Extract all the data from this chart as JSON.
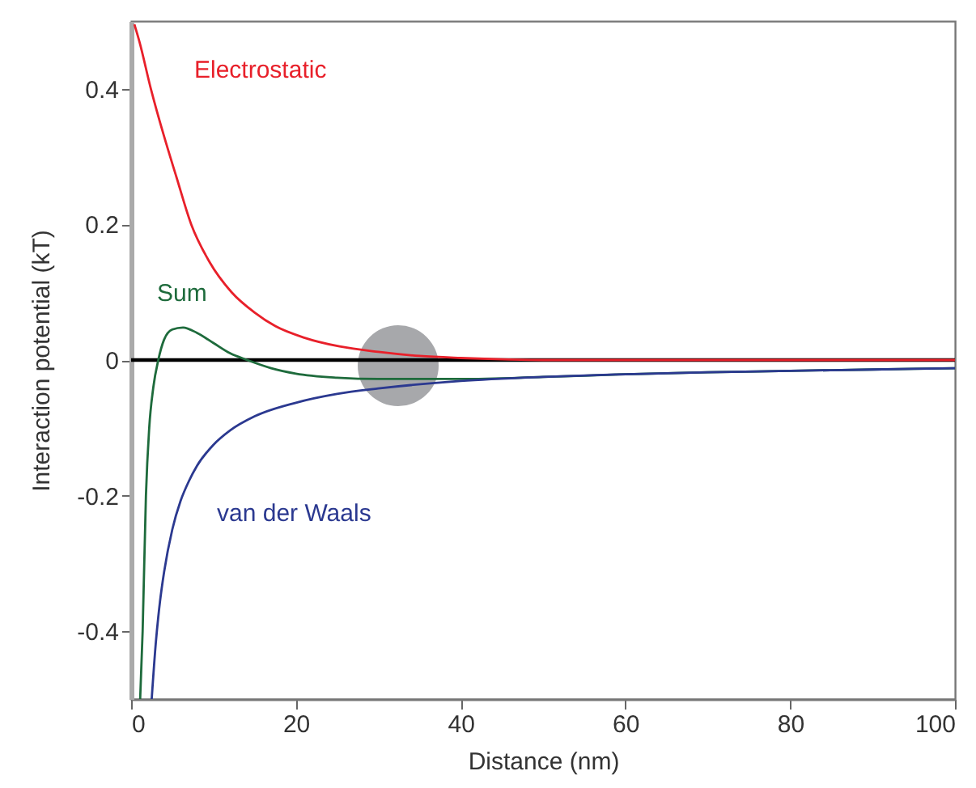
{
  "chart_data": {
    "type": "line",
    "xlabel": "Distance (nm)",
    "ylabel": "Interaction potential (kT)",
    "xlim": [
      0,
      100
    ],
    "xticks": [
      0,
      20,
      40,
      60,
      80,
      100
    ],
    "ylim": [
      -0.5,
      0.5
    ],
    "yticks": [
      -0.4,
      -0.2,
      0,
      0.2,
      0.4
    ],
    "grid": false,
    "line_style": "solid",
    "marker": "none",
    "ref_lines": [
      {
        "axis": "y",
        "value": 0,
        "color": "#000000"
      }
    ],
    "series": [
      {
        "name": "Electrostatic",
        "color": "#e8202a",
        "x": [
          0.4,
          1,
          2.4,
          4,
          5.5,
          7.3,
          9.5,
          12.2,
          15,
          17.5,
          21,
          25.3,
          30,
          35,
          40,
          45,
          50,
          100
        ],
        "values": [
          0.495,
          0.47,
          0.4,
          0.33,
          0.27,
          0.2,
          0.145,
          0.1,
          0.07,
          0.05,
          0.033,
          0.02,
          0.012,
          0.006,
          0.003,
          0.001,
          0,
          0
        ]
      },
      {
        "name": "Sum",
        "color": "#1e6b3c",
        "x": [
          1.1,
          1.4,
          1.8,
          2.2,
          2.7,
          3.3,
          4,
          5,
          6.3,
          8,
          10,
          12,
          14.1,
          17,
          20,
          25,
          30,
          35,
          40,
          50,
          60,
          70,
          80,
          90,
          100
        ],
        "values": [
          -0.5,
          -0.4,
          -0.2,
          -0.1,
          -0.04,
          0,
          0.03,
          0.045,
          0.048,
          0.04,
          0.025,
          0.01,
          0,
          -0.012,
          -0.02,
          -0.026,
          -0.028,
          -0.028,
          -0.028,
          -0.025,
          -0.021,
          -0.018,
          -0.016,
          -0.014,
          -0.012
        ]
      },
      {
        "name": "van der Waals",
        "color": "#2b3990",
        "x": [
          2.5,
          3,
          3.5,
          4,
          5,
          6,
          7,
          8,
          10,
          12,
          15,
          20,
          25,
          30,
          40,
          50,
          60,
          70,
          80,
          90,
          100
        ],
        "values": [
          -0.5,
          -0.417,
          -0.357,
          -0.313,
          -0.25,
          -0.208,
          -0.179,
          -0.156,
          -0.125,
          -0.104,
          -0.083,
          -0.063,
          -0.05,
          -0.042,
          -0.031,
          -0.025,
          -0.021,
          -0.018,
          -0.016,
          -0.014,
          -0.012
        ]
      }
    ]
  }
}
